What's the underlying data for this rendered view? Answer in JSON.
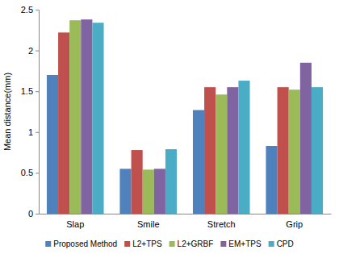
{
  "chart_data": {
    "type": "bar",
    "ylabel": "Mean distance(mm)",
    "categories": [
      "Slap",
      "Smile",
      "Stretch",
      "Grip"
    ],
    "series": [
      {
        "name": "Proposed Method",
        "color": "#4f81bd",
        "values": [
          1.7,
          0.55,
          1.27,
          0.83
        ]
      },
      {
        "name": "L2+TPS",
        "color": "#c0504d",
        "values": [
          2.22,
          0.78,
          1.55,
          1.55
        ]
      },
      {
        "name": "L2+GRBF",
        "color": "#9bbb59",
        "values": [
          2.37,
          0.54,
          1.46,
          1.52
        ]
      },
      {
        "name": "EM+TPS",
        "color": "#8064a2",
        "values": [
          2.38,
          0.55,
          1.55,
          1.85
        ]
      },
      {
        "name": "CPD",
        "color": "#4bacc6",
        "values": [
          2.34,
          0.79,
          1.63,
          1.55
        ]
      }
    ],
    "ylim": [
      0,
      2.5
    ],
    "yticks": [
      0,
      0.5,
      1,
      1.5,
      2,
      2.5
    ],
    "grid": false,
    "legend": "bottom"
  }
}
